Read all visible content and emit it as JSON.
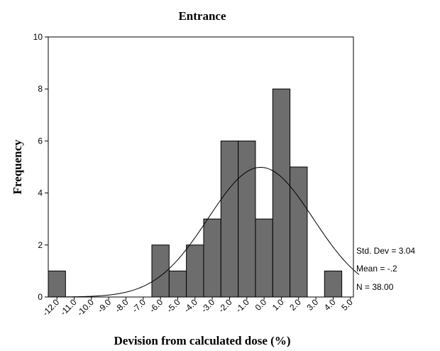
{
  "chart_data": {
    "type": "bar",
    "title": "Entrance",
    "xlabel": "Devision from calculated dose (%)",
    "ylabel": "Frequency",
    "ylim": [
      0,
      10
    ],
    "yticks": [
      "0",
      "2",
      "4",
      "6",
      "8",
      "10"
    ],
    "categories": [
      "-12.0",
      "-11.0",
      "-10.0",
      "-9.0",
      "-8.0",
      "-7.0",
      "-6.0",
      "-5.0",
      "-4.0",
      "-3.0",
      "-2.0",
      "-1.0",
      "0.0",
      "1.0",
      "2.0",
      "3.0",
      "4.0",
      "5.0"
    ],
    "values": [
      1,
      0,
      0,
      0,
      0,
      0,
      2,
      1,
      2,
      3,
      6,
      6,
      3,
      8,
      5,
      0,
      1,
      0
    ],
    "normal_curve": {
      "mean": -0.2,
      "std_dev": 3.04,
      "n": 38
    },
    "stats": {
      "std_dev": "Std. Dev = 3.04",
      "mean": "Mean = -.2",
      "n": "N = 38.00"
    },
    "colors": {
      "bar_fill": "#6d6d6d",
      "bar_stroke": "#000000",
      "curve": "#000000",
      "axis": "#000000"
    }
  }
}
